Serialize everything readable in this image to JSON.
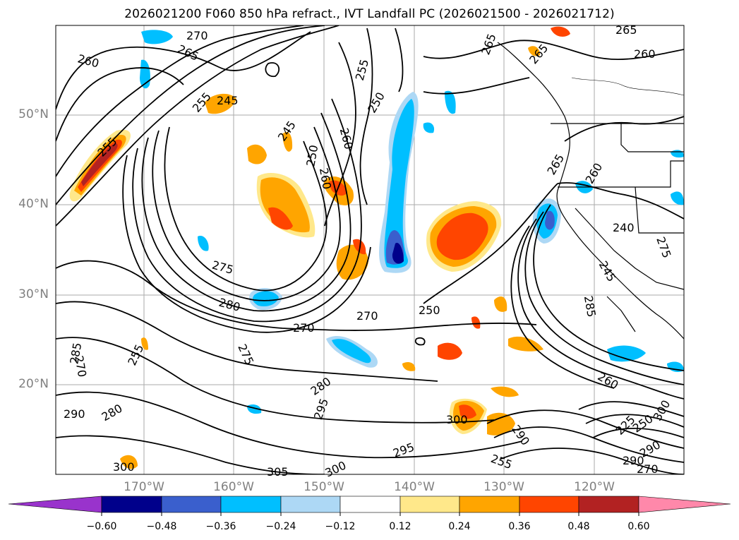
{
  "title": "2026021200 F060 850 hPa refract., IVT Landfall PC (2026021500 - 2026021712)",
  "map": {
    "lat_labels": [
      "50°N",
      "40°N",
      "30°N",
      "20°N"
    ],
    "lon_labels": [
      "170°W",
      "160°W",
      "150°W",
      "140°W",
      "130°W",
      "120°W"
    ],
    "contour_labels": [
      "270",
      "265",
      "260",
      "255",
      "245",
      "255",
      "245",
      "250",
      "255",
      "250",
      "260",
      "260",
      "265",
      "265",
      "260",
      "265",
      "265",
      "260",
      "240",
      "275",
      "280",
      "270",
      "270",
      "250",
      "245",
      "285",
      "275",
      "255",
      "285",
      "270",
      "290",
      "280",
      "280",
      "295",
      "300",
      "290",
      "295",
      "300",
      "305",
      "255",
      "260",
      "225",
      "250",
      "300",
      "290",
      "290",
      "270",
      "275"
    ]
  },
  "colorbar": {
    "ticks": [
      "−0.60",
      "−0.48",
      "−0.36",
      "−0.24",
      "−0.12",
      "0.12",
      "0.24",
      "0.36",
      "0.48",
      "0.60"
    ],
    "colors": [
      "#9933cc",
      "#00008b",
      "#3a5fcd",
      "#00bfff",
      "#add8f5",
      "#ffffff",
      "#ffe88a",
      "#ffa500",
      "#ff4500",
      "#b22222",
      "#ff88aa"
    ]
  }
}
